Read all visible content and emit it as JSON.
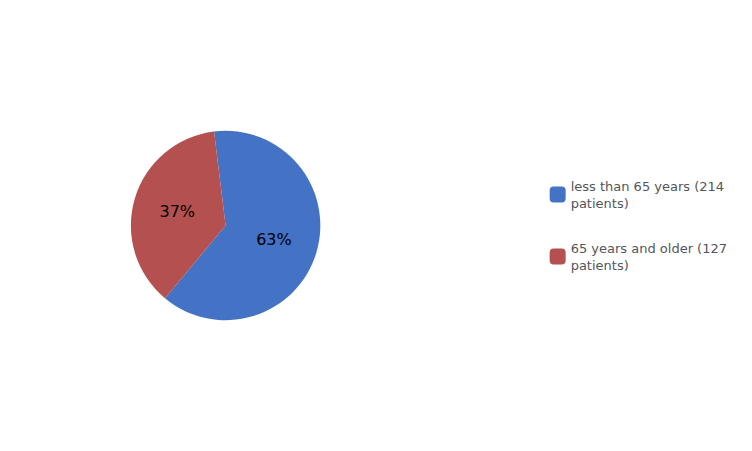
{
  "chart_data": {
    "type": "pie",
    "categories": [
      "less than 65 years (214\npatients)",
      "65 years and older (127\npatients)"
    ],
    "values": [
      63,
      37
    ],
    "value_labels": [
      "63%",
      "37%"
    ],
    "colors": [
      "#4472C4",
      "#B55050"
    ],
    "data_labels": true,
    "legend": "right"
  }
}
